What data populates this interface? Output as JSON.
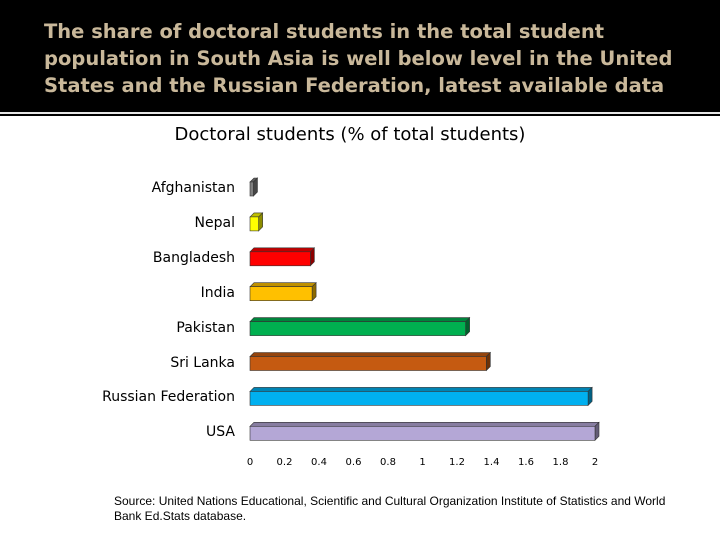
{
  "slide": {
    "title": "The share of doctoral students in the total student population in South Asia is well below level in the United States and the Russian Federation, latest available data",
    "source": "Source: United Nations Educational, Scientific and Cultural Organization Institute of Statistics and World Bank Ed.Stats database."
  },
  "chart_data": {
    "type": "bar",
    "title": "Doctoral students  (% of total students)",
    "xlabel": "",
    "ylabel": "",
    "categories": [
      "Afghanistan",
      "Nepal",
      "Bangladesh",
      "India",
      "Pakistan",
      "Sri Lanka",
      "Russian Federation",
      "USA"
    ],
    "values": [
      0.02,
      0.05,
      0.35,
      0.36,
      1.25,
      1.37,
      1.96,
      2.0
    ],
    "colors": [
      "#7f7f7f",
      "#ffff00",
      "#ff0000",
      "#ffc000",
      "#00b050",
      "#c55a11",
      "#00b0f0",
      "#b4a7d6"
    ],
    "xticks": [
      "0",
      "0.2",
      "0.4",
      "0.6",
      "0.8",
      "1",
      "1.2",
      "1.4",
      "1.6",
      "1.8",
      "2"
    ],
    "xlim": [
      0,
      2
    ],
    "grid": false,
    "legend": "none"
  }
}
